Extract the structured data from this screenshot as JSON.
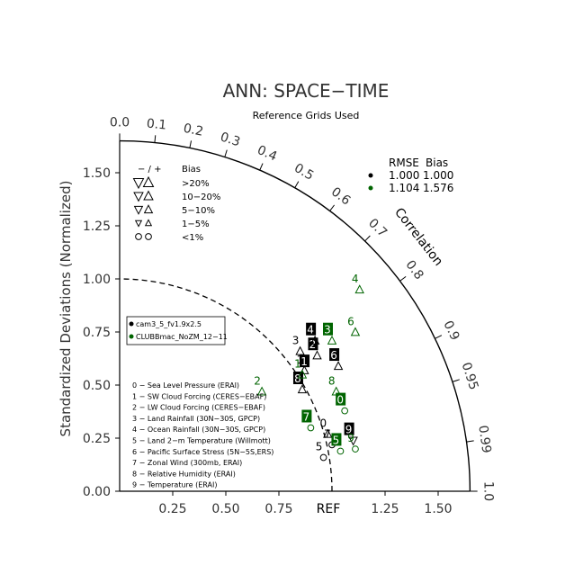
{
  "chart_data": {
    "type": "scatter",
    "title": "ANN: SPACE−TIME",
    "subtitle": "Reference Grids Used",
    "ylabel": "Standardized Deviations (Normalized)",
    "arc_label": "Correlation",
    "ref_label": "REF",
    "xlim": [
      0,
      1.65
    ],
    "ylim": [
      0,
      1.65
    ],
    "std_ticks_x": [
      "0.25",
      "0.50",
      "0.75",
      "1.25",
      "1.50"
    ],
    "std_ticks_x_values": [
      0.25,
      0.5,
      0.75,
      1.25,
      1.5
    ],
    "std_ticks_y": [
      "0.00",
      "0.25",
      "0.50",
      "0.75",
      "1.00",
      "1.25",
      "1.50"
    ],
    "std_ticks_y_values": [
      0,
      0.25,
      0.5,
      0.75,
      1.0,
      1.25,
      1.5
    ],
    "corr_ticks": [
      "0.0",
      "0.1",
      "0.2",
      "0.3",
      "0.4",
      "0.5",
      "0.6",
      "0.7",
      "0.8",
      "0.9",
      "0.95",
      "0.99",
      "1.0"
    ],
    "corr_values": [
      0.0,
      0.1,
      0.2,
      0.3,
      0.4,
      0.5,
      0.6,
      0.7,
      0.8,
      0.9,
      0.95,
      0.99,
      1.0
    ],
    "bias_legend": {
      "header_sign": "− / +",
      "header_bias": "Bias",
      "rows": [
        ">20%",
        "10−20%",
        "5−10%",
        "1−5%",
        "<1%"
      ]
    },
    "rmse_legend": {
      "header_rmse": "RMSE",
      "header_bias": "Bias",
      "rows": [
        {
          "rmse": "1.000",
          "bias": "1.000",
          "color": "#000000"
        },
        {
          "rmse": "1.104",
          "bias": "1.576",
          "color": "#006400"
        }
      ]
    },
    "series": [
      {
        "name": "cam3_5_fv1.9x2.5",
        "color": "#000000"
      },
      {
        "name": "CLUBBmac_NoZM_12−11",
        "color": "#006400"
      }
    ],
    "variables": [
      "0 − Sea Level Pressure (ERAI)",
      "1 − SW Cloud Forcing (CERES−EBAF)",
      "2 − LW Cloud Forcing (CERES−EBAF)",
      "3 − Land Rainfall (30N−30S, GPCP)",
      "4 − Ocean Rainfall (30N−30S, GPCP)",
      "5 − Land 2−m Temperature (Willmott)",
      "6 − Pacific Surface Stress (5N−5S,ERS)",
      "7 − Zonal Wind (300mb, ERAI)",
      "8 − Relative Humidity (ERAI)",
      "9 − Temperature (ERAI)"
    ],
    "points": [
      {
        "series": 0,
        "label": "0",
        "x": 0.98,
        "y": 0.29,
        "marker": "up",
        "boxed": false
      },
      {
        "series": 0,
        "label": "1",
        "x": 0.87,
        "y": 0.59,
        "marker": "up",
        "boxed": false
      },
      {
        "series": 0,
        "label": "2",
        "x": 0.93,
        "y": 0.66,
        "marker": "up",
        "boxed": true
      },
      {
        "series": 0,
        "label": "3",
        "x": 0.85,
        "y": 0.68,
        "marker": "up",
        "boxed": false
      },
      {
        "series": 0,
        "label": "4",
        "x": 0.92,
        "y": 0.73,
        "marker": "up",
        "boxed": true
      },
      {
        "series": 0,
        "label": "5",
        "x": 0.96,
        "y": 0.18,
        "marker": "circle",
        "boxed": false
      },
      {
        "series": 0,
        "label": "6",
        "x": 1.03,
        "y": 0.61,
        "marker": "up",
        "boxed": true
      },
      {
        "series": 0,
        "label": "7",
        "x": 1.0,
        "y": 0.24,
        "marker": "circle",
        "boxed": false
      },
      {
        "series": 0,
        "label": "8",
        "x": 0.86,
        "y": 0.5,
        "marker": "up",
        "boxed": true
      },
      {
        "series": 0,
        "label": "9",
        "x": 1.1,
        "y": 0.26,
        "marker": "down",
        "boxed": true
      },
      {
        "series": 0,
        "label": "1",
        "x": 0.89,
        "y": 0.58,
        "marker": "none",
        "boxed": true
      },
      {
        "series": 1,
        "label": "0",
        "x": 1.06,
        "y": 0.4,
        "marker": "circle",
        "boxed": true
      },
      {
        "series": 1,
        "label": "1",
        "x": 0.86,
        "y": 0.57,
        "marker": "up",
        "boxed": false
      },
      {
        "series": 1,
        "label": "2",
        "x": 0.67,
        "y": 0.49,
        "marker": "up",
        "boxed": false
      },
      {
        "series": 1,
        "label": "3",
        "x": 1.0,
        "y": 0.73,
        "marker": "up",
        "boxed": true
      },
      {
        "series": 1,
        "label": "4",
        "x": 1.13,
        "y": 0.97,
        "marker": "up",
        "boxed": false
      },
      {
        "series": 1,
        "label": "5",
        "x": 1.04,
        "y": 0.21,
        "marker": "circle",
        "boxed": true
      },
      {
        "series": 1,
        "label": "6",
        "x": 1.11,
        "y": 0.77,
        "marker": "up",
        "boxed": false
      },
      {
        "series": 1,
        "label": "7",
        "x": 0.9,
        "y": 0.32,
        "marker": "circle",
        "boxed": true
      },
      {
        "series": 1,
        "label": "8",
        "x": 1.02,
        "y": 0.49,
        "marker": "up",
        "boxed": false
      },
      {
        "series": 1,
        "label": "9",
        "x": 1.11,
        "y": 0.22,
        "marker": "circle",
        "boxed": false
      }
    ],
    "reference_arc": 1.0,
    "grid": false
  }
}
